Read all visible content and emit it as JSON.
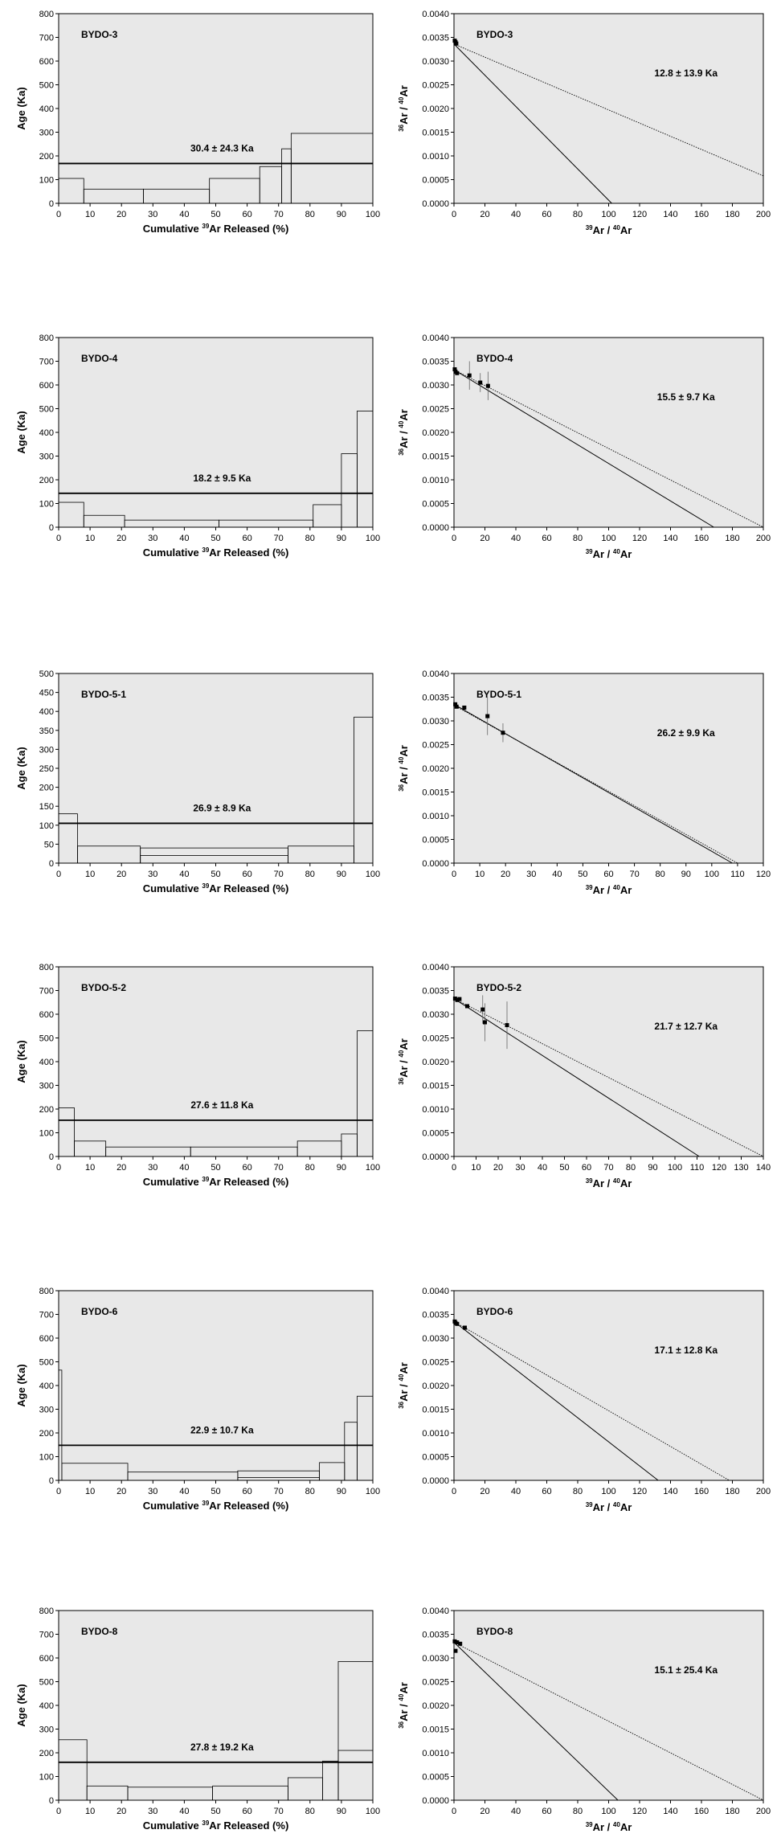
{
  "chart_data": [
    {
      "type": "bar",
      "kind": "spectrum",
      "sample": "BYDO-3",
      "plateau_label": "30.4 ± 24.3 Ka",
      "plateau_age": 168,
      "ylabel": "Age (Ka)",
      "xlabel_pre": "Cumulative ",
      "xlabel_sup": "39",
      "xlabel_post": "Ar Released (%)",
      "xlim": [
        0,
        100
      ],
      "ylim": [
        0,
        800
      ],
      "xticks": [
        0,
        10,
        20,
        30,
        40,
        50,
        60,
        70,
        80,
        90,
        100
      ],
      "yticks": [
        0,
        100,
        200,
        300,
        400,
        500,
        600,
        700,
        800
      ],
      "steps": [
        {
          "x0": 0,
          "x1": 8,
          "age": 105
        },
        {
          "x0": 8,
          "x1": 27,
          "age": 60
        },
        {
          "x0": 27,
          "x1": 48,
          "age": 60
        },
        {
          "x0": 48,
          "x1": 64,
          "age": 105
        },
        {
          "x0": 64,
          "x1": 71,
          "age": 155
        },
        {
          "x0": 71,
          "x1": 74,
          "age": 230
        },
        {
          "x0": 74,
          "x1": 100,
          "age": 295
        }
      ]
    },
    {
      "type": "scatter",
      "kind": "isochron",
      "sample": "BYDO-3",
      "age_label": "12.8 ± 13.9 Ka",
      "ylabel_sup1": "36",
      "ylabel_mid": "Ar / ",
      "ylabel_sup2": "40",
      "ylabel_post": "Ar",
      "xlabel_sup1": "39",
      "xlabel_mid": "Ar / ",
      "xlabel_sup2": "40",
      "xlabel_post": "Ar",
      "xlim": [
        0,
        200
      ],
      "ylim": [
        0,
        0.004
      ],
      "xticks": [
        0,
        20,
        40,
        60,
        80,
        100,
        120,
        140,
        160,
        180,
        200
      ],
      "yticks": [
        "0.0000",
        "0.0005",
        "0.0010",
        "0.0015",
        "0.0020",
        "0.0025",
        "0.0030",
        "0.0035",
        "0.0040"
      ],
      "points": [
        {
          "x": 0.5,
          "y": 0.00343,
          "err": 0
        },
        {
          "x": 1,
          "y": 0.0034,
          "err": 0
        },
        {
          "x": 1.5,
          "y": 0.00337,
          "err": 0
        }
      ],
      "solid_line": {
        "y0": 0.00336,
        "x_int": 102
      },
      "dotted_line": {
        "y0": 0.00336,
        "x_end": 200,
        "y_end": 0.00058
      }
    },
    {
      "type": "bar",
      "kind": "spectrum",
      "sample": "BYDO-4",
      "plateau_label": "18.2 ± 9.5 Ka",
      "plateau_age": 143,
      "ylabel": "Age (Ka)",
      "xlabel_pre": "Cumulative ",
      "xlabel_sup": "39",
      "xlabel_post": "Ar Released (%)",
      "xlim": [
        0,
        100
      ],
      "ylim": [
        0,
        800
      ],
      "xticks": [
        0,
        10,
        20,
        30,
        40,
        50,
        60,
        70,
        80,
        90,
        100
      ],
      "yticks": [
        0,
        100,
        200,
        300,
        400,
        500,
        600,
        700,
        800
      ],
      "steps": [
        {
          "x0": 0,
          "x1": 8,
          "age": 105
        },
        {
          "x0": 8,
          "x1": 21,
          "age": 50
        },
        {
          "x0": 21,
          "x1": 51,
          "age": 30
        },
        {
          "x0": 51,
          "x1": 81,
          "age": 30
        },
        {
          "x0": 81,
          "x1": 90,
          "age": 95
        },
        {
          "x0": 90,
          "x1": 95,
          "age": 310
        },
        {
          "x0": 95,
          "x1": 100,
          "age": 490
        }
      ]
    },
    {
      "type": "scatter",
      "kind": "isochron",
      "sample": "BYDO-4",
      "age_label": "15.5 ± 9.7 Ka",
      "ylabel_sup1": "36",
      "ylabel_mid": "Ar / ",
      "ylabel_sup2": "40",
      "ylabel_post": "Ar",
      "xlabel_sup1": "39",
      "xlabel_mid": "Ar / ",
      "xlabel_sup2": "40",
      "xlabel_post": "Ar",
      "xlim": [
        0,
        200
      ],
      "ylim": [
        0,
        0.004
      ],
      "xticks": [
        0,
        20,
        40,
        60,
        80,
        100,
        120,
        140,
        160,
        180,
        200
      ],
      "yticks": [
        "0.0000",
        "0.0005",
        "0.0010",
        "0.0015",
        "0.0020",
        "0.0025",
        "0.0030",
        "0.0035",
        "0.0040"
      ],
      "points": [
        {
          "x": 0.5,
          "y": 0.00333,
          "err": 0
        },
        {
          "x": 1,
          "y": 0.00328,
          "err": 0
        },
        {
          "x": 2,
          "y": 0.00325,
          "err": 0
        },
        {
          "x": 10,
          "y": 0.0032,
          "err": 0.0003
        },
        {
          "x": 17,
          "y": 0.00305,
          "err": 0.0002
        },
        {
          "x": 22,
          "y": 0.00298,
          "err": 0.0003
        }
      ],
      "solid_line": {
        "y0": 0.00332,
        "x_int": 168
      },
      "dotted_line": {
        "y0": 0.00332,
        "x_end": 200,
        "y_end": 0
      }
    },
    {
      "type": "bar",
      "kind": "spectrum",
      "sample": "BYDO-5-1",
      "plateau_label": "26.9 ± 8.9 Ka",
      "plateau_age": 105,
      "ylabel": "Age (Ka)",
      "xlabel_pre": "Cumulative ",
      "xlabel_sup": "39",
      "xlabel_post": "Ar Released (%)",
      "xlim": [
        0,
        100
      ],
      "ylim": [
        0,
        500
      ],
      "xticks": [
        0,
        10,
        20,
        30,
        40,
        50,
        60,
        70,
        80,
        90,
        100
      ],
      "yticks": [
        0,
        50,
        100,
        150,
        200,
        250,
        300,
        350,
        400,
        450,
        500
      ],
      "steps": [
        {
          "x0": 0,
          "x1": 6,
          "age": 130
        },
        {
          "x0": 6,
          "x1": 26,
          "age": 45
        },
        {
          "x0": 26,
          "x1": 73,
          "age": 20
        },
        {
          "x0": 26,
          "x1": 73,
          "age": 40
        },
        {
          "x0": 73,
          "x1": 94,
          "age": 45
        },
        {
          "x0": 94,
          "x1": 100,
          "age": 385
        }
      ]
    },
    {
      "type": "scatter",
      "kind": "isochron",
      "sample": "BYDO-5-1",
      "age_label": "26.2 ± 9.9 Ka",
      "ylabel_sup1": "36",
      "ylabel_mid": "Ar / ",
      "ylabel_sup2": "40",
      "ylabel_post": "Ar",
      "xlabel_sup1": "39",
      "xlabel_mid": "Ar / ",
      "xlabel_sup2": "40",
      "xlabel_post": "Ar",
      "xlim": [
        0,
        120
      ],
      "ylim": [
        0,
        0.004
      ],
      "xticks": [
        0,
        10,
        20,
        30,
        40,
        50,
        60,
        70,
        80,
        90,
        100,
        110,
        120
      ],
      "yticks": [
        "0.0000",
        "0.0005",
        "0.0010",
        "0.0015",
        "0.0020",
        "0.0025",
        "0.0030",
        "0.0035",
        "0.0040"
      ],
      "points": [
        {
          "x": 0.5,
          "y": 0.00335,
          "err": 0
        },
        {
          "x": 1,
          "y": 0.0033,
          "err": 0
        },
        {
          "x": 4,
          "y": 0.00328,
          "err": 0
        },
        {
          "x": 13,
          "y": 0.0031,
          "err": 0.0004
        },
        {
          "x": 19,
          "y": 0.00275,
          "err": 0.0002
        }
      ],
      "solid_line": {
        "y0": 0.00335,
        "x_int": 108
      },
      "dotted_line": {
        "y0": 0.00333,
        "x_end": 110,
        "y_end": 0
      }
    },
    {
      "type": "bar",
      "kind": "spectrum",
      "sample": "BYDO-5-2",
      "plateau_label": "27.6 ± 11.8 Ka",
      "plateau_age": 153,
      "ylabel": "Age (Ka)",
      "xlabel_pre": "Cumulative ",
      "xlabel_sup": "39",
      "xlabel_post": "Ar Released (%)",
      "xlim": [
        0,
        100
      ],
      "ylim": [
        0,
        800
      ],
      "xticks": [
        0,
        10,
        20,
        30,
        40,
        50,
        60,
        70,
        80,
        90,
        100
      ],
      "yticks": [
        0,
        100,
        200,
        300,
        400,
        500,
        600,
        700,
        800
      ],
      "steps": [
        {
          "x0": 0,
          "x1": 5,
          "age": 205
        },
        {
          "x0": 5,
          "x1": 15,
          "age": 65
        },
        {
          "x0": 15,
          "x1": 42,
          "age": 40
        },
        {
          "x0": 42,
          "x1": 76,
          "age": 40
        },
        {
          "x0": 76,
          "x1": 90,
          "age": 65
        },
        {
          "x0": 90,
          "x1": 95,
          "age": 95
        },
        {
          "x0": 95,
          "x1": 100,
          "age": 530
        }
      ]
    },
    {
      "type": "scatter",
      "kind": "isochron",
      "sample": "BYDO-5-2",
      "age_label": "21.7 ± 12.7 Ka",
      "ylabel_sup1": "36",
      "ylabel_mid": "Ar / ",
      "ylabel_sup2": "40",
      "ylabel_post": "Ar",
      "xlabel_sup1": "39",
      "xlabel_mid": "Ar / ",
      "xlabel_sup2": "40",
      "xlabel_post": "Ar",
      "xlim": [
        0,
        140
      ],
      "ylim": [
        0,
        0.004
      ],
      "xticks": [
        0,
        10,
        20,
        30,
        40,
        50,
        60,
        70,
        80,
        90,
        100,
        110,
        120,
        130,
        140
      ],
      "yticks": [
        "0.0000",
        "0.0005",
        "0.0010",
        "0.0015",
        "0.0020",
        "0.0025",
        "0.0030",
        "0.0035",
        "0.0040"
      ],
      "points": [
        {
          "x": 0.5,
          "y": 0.00333,
          "err": 0
        },
        {
          "x": 1.5,
          "y": 0.0033,
          "err": 0
        },
        {
          "x": 2.5,
          "y": 0.00332,
          "err": 0
        },
        {
          "x": 6,
          "y": 0.00317,
          "err": 0
        },
        {
          "x": 13,
          "y": 0.0031,
          "err": 0.0003
        },
        {
          "x": 14,
          "y": 0.00283,
          "err": 0.0004
        },
        {
          "x": 24,
          "y": 0.00277,
          "err": 0.0005
        }
      ],
      "solid_line": {
        "y0": 0.00333,
        "x_int": 111
      },
      "dotted_line": {
        "y0": 0.00333,
        "x_end": 140,
        "y_end": 0
      }
    },
    {
      "type": "bar",
      "kind": "spectrum",
      "sample": "BYDO-6",
      "plateau_label": "22.9 ± 10.7 Ka",
      "plateau_age": 148,
      "ylabel": "Age (Ka)",
      "xlabel_pre": "Cumulative ",
      "xlabel_sup": "39",
      "xlabel_post": "Ar Released (%)",
      "xlim": [
        0,
        100
      ],
      "ylim": [
        0,
        800
      ],
      "xticks": [
        0,
        10,
        20,
        30,
        40,
        50,
        60,
        70,
        80,
        90,
        100
      ],
      "yticks": [
        0,
        100,
        200,
        300,
        400,
        500,
        600,
        700,
        800
      ],
      "steps": [
        {
          "x0": 0,
          "x1": 1,
          "age": 465
        },
        {
          "x0": 1,
          "x1": 22,
          "age": 72
        },
        {
          "x0": 22,
          "x1": 57,
          "age": 35
        },
        {
          "x0": 57,
          "x1": 83,
          "age": 40
        },
        {
          "x0": 57,
          "x1": 83,
          "age": 12
        },
        {
          "x0": 83,
          "x1": 91,
          "age": 75
        },
        {
          "x0": 91,
          "x1": 95,
          "age": 245
        },
        {
          "x0": 95,
          "x1": 100,
          "age": 355
        }
      ]
    },
    {
      "type": "scatter",
      "kind": "isochron",
      "sample": "BYDO-6",
      "age_label": "17.1 ± 12.8 Ka",
      "ylabel_sup1": "36",
      "ylabel_mid": "Ar / ",
      "ylabel_sup2": "40",
      "ylabel_post": "Ar",
      "xlabel_sup1": "39",
      "xlabel_mid": "Ar / ",
      "xlabel_sup2": "40",
      "xlabel_post": "Ar",
      "xlim": [
        0,
        200
      ],
      "ylim": [
        0,
        0.004
      ],
      "xticks": [
        0,
        20,
        40,
        60,
        80,
        100,
        120,
        140,
        160,
        180,
        200
      ],
      "yticks": [
        "0.0000",
        "0.0005",
        "0.0010",
        "0.0015",
        "0.0020",
        "0.0025",
        "0.0030",
        "0.0035",
        "0.0040"
      ],
      "points": [
        {
          "x": 0.5,
          "y": 0.00335,
          "err": 0
        },
        {
          "x": 1,
          "y": 0.00332,
          "err": 0
        },
        {
          "x": 2,
          "y": 0.0033,
          "err": 0
        },
        {
          "x": 7,
          "y": 0.00322,
          "err": 0
        }
      ],
      "solid_line": {
        "y0": 0.00335,
        "x_int": 132
      },
      "dotted_line": {
        "y0": 0.00335,
        "x_end": 178,
        "y_end": 0
      }
    },
    {
      "type": "bar",
      "kind": "spectrum",
      "sample": "BYDO-8",
      "plateau_label": "27.8 ± 19.2 Ka",
      "plateau_age": 160,
      "ylabel": "Age (Ka)",
      "xlabel_pre": "Cumulative ",
      "xlabel_sup": "39",
      "xlabel_post": "Ar Released (%)",
      "xlim": [
        0,
        100
      ],
      "ylim": [
        0,
        800
      ],
      "xticks": [
        0,
        10,
        20,
        30,
        40,
        50,
        60,
        70,
        80,
        90,
        100
      ],
      "yticks": [
        0,
        100,
        200,
        300,
        400,
        500,
        600,
        700,
        800
      ],
      "steps": [
        {
          "x0": 0,
          "x1": 9,
          "age": 255
        },
        {
          "x0": 9,
          "x1": 22,
          "age": 60
        },
        {
          "x0": 22,
          "x1": 49,
          "age": 55
        },
        {
          "x0": 49,
          "x1": 73,
          "age": 60
        },
        {
          "x0": 73,
          "x1": 84,
          "age": 95
        },
        {
          "x0": 84,
          "x1": 89,
          "age": 165
        },
        {
          "x0": 89,
          "x1": 100,
          "age": 210
        },
        {
          "x0": 89,
          "x1": 100,
          "age": 585
        }
      ]
    },
    {
      "type": "scatter",
      "kind": "isochron",
      "sample": "BYDO-8",
      "age_label": "15.1 ± 25.4 Ka",
      "ylabel_sup1": "36",
      "ylabel_mid": "Ar / ",
      "ylabel_sup2": "40",
      "ylabel_post": "Ar",
      "xlabel_sup1": "39",
      "xlabel_mid": "Ar / ",
      "xlabel_sup2": "40",
      "xlabel_post": "Ar",
      "xlim": [
        0,
        200
      ],
      "ylim": [
        0,
        0.004
      ],
      "xticks": [
        0,
        20,
        40,
        60,
        80,
        100,
        120,
        140,
        160,
        180,
        200
      ],
      "yticks": [
        "0.0000",
        "0.0005",
        "0.0010",
        "0.0015",
        "0.0020",
        "0.0025",
        "0.0030",
        "0.0035",
        "0.0040"
      ],
      "points": [
        {
          "x": 0.5,
          "y": 0.00335,
          "err": 0
        },
        {
          "x": 1,
          "y": 0.00315,
          "err": 0
        },
        {
          "x": 2,
          "y": 0.00333,
          "err": 0
        },
        {
          "x": 4,
          "y": 0.0033,
          "err": 0
        }
      ],
      "solid_line": {
        "y0": 0.00333,
        "x_int": 106
      },
      "dotted_line": {
        "y0": 0.00333,
        "x_end": 200,
        "y_end": 0
      }
    }
  ]
}
